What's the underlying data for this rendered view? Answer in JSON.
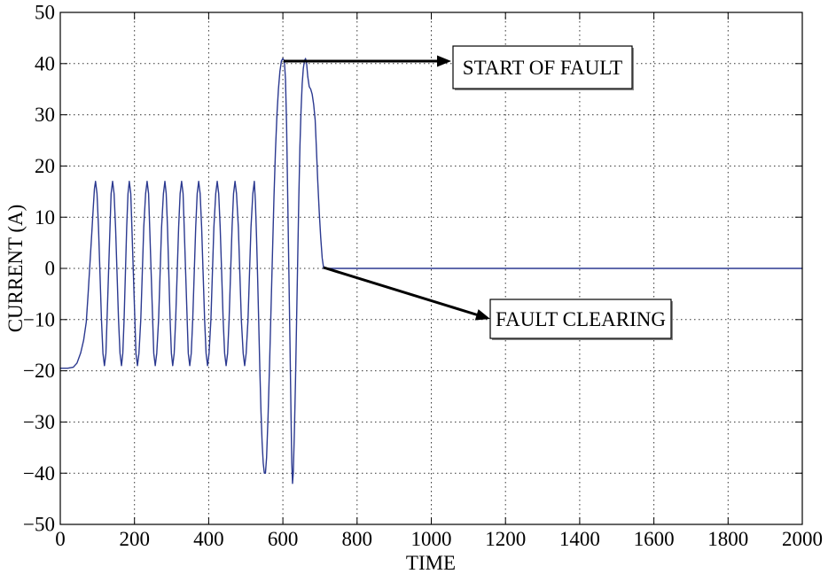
{
  "chart_data": {
    "type": "line",
    "xlabel": "TIME",
    "ylabel": "CURRENT (A)",
    "xlim": [
      0,
      2000
    ],
    "ylim": [
      -50,
      50
    ],
    "xticks": [
      "0",
      "200",
      "400",
      "600",
      "800",
      "1000",
      "1200",
      "1400",
      "1600",
      "1800",
      "2000"
    ],
    "yticks": [
      "50",
      "40",
      "30",
      "20",
      "10",
      "0",
      "−10",
      "−20",
      "−30",
      "−40",
      "−50"
    ],
    "grid": true,
    "series": [
      {
        "color": "#2b3990",
        "x": [
          0,
          20,
          35,
          45,
          55,
          63,
          70,
          75,
          80,
          85,
          89,
          92,
          95,
          99,
          103,
          107,
          111,
          115,
          119,
          123,
          126,
          130,
          134,
          137,
          141,
          145,
          149,
          153,
          157,
          161,
          165,
          168.5,
          172,
          175.5,
          179,
          182.5,
          186,
          190,
          193,
          197,
          201,
          204,
          208,
          212,
          217,
          221,
          225,
          230,
          234,
          238,
          241,
          245,
          249,
          252,
          256,
          260,
          265,
          269,
          273,
          278,
          282,
          285.5,
          289,
          292.5,
          296,
          299.5,
          303,
          307,
          311,
          315,
          319,
          323,
          327,
          331,
          334,
          338,
          342,
          345,
          349,
          353,
          357,
          361,
          365,
          369,
          373,
          377,
          381,
          385,
          389,
          393,
          397,
          401,
          406,
          410,
          414,
          419,
          423,
          427,
          431,
          435,
          439,
          443,
          447,
          451,
          455,
          459,
          463,
          467,
          471,
          475,
          480,
          484,
          488,
          493,
          497,
          501,
          506,
          510,
          514,
          519,
          523,
          526,
          529,
          532,
          535,
          538,
          541,
          544,
          547,
          550,
          553,
          556,
          560,
          564,
          568,
          572,
          576,
          580,
          584,
          588,
          592,
          596,
          600,
          604,
          607,
          610,
          613,
          616,
          619,
          622,
          624,
          626,
          628,
          631,
          634,
          637,
          640,
          643,
          646,
          649,
          652,
          655,
          658,
          661,
          664,
          667,
          671,
          675,
          679,
          683,
          687,
          690,
          694,
          698,
          702,
          706,
          710,
          2000
        ],
        "y": [
          -19.5,
          -19.5,
          -19.3,
          -18.5,
          -16.5,
          -14,
          -10.5,
          -5,
          1,
          7,
          12,
          15.5,
          17,
          14.6,
          8,
          -1,
          -10,
          -16.6,
          -19,
          -16.6,
          -10,
          -1,
          8,
          14.6,
          17,
          14.6,
          8,
          -1,
          -10,
          -16.6,
          -19,
          -16.6,
          -10,
          -1,
          8,
          14.6,
          17,
          14.6,
          8,
          -1,
          -10,
          -16.6,
          -19,
          -16.6,
          -10,
          -1,
          8,
          14.6,
          17,
          14.6,
          8,
          -1,
          -10,
          -16.6,
          -19,
          -16.6,
          -10,
          -1,
          8,
          14.6,
          17,
          14.6,
          8,
          -1,
          -10,
          -16.6,
          -19,
          -16.6,
          -10,
          -1,
          8,
          14.6,
          17,
          14.6,
          8,
          -1,
          -10,
          -16.6,
          -19,
          -16.6,
          -10,
          -1,
          8,
          14.6,
          17,
          14.6,
          8,
          -1,
          -10,
          -16.6,
          -19,
          -16.6,
          -10,
          -1,
          8,
          14.6,
          17,
          14.6,
          8,
          -1,
          -10,
          -16.6,
          -19,
          -16.6,
          -10,
          -1,
          8,
          14.6,
          17,
          14.6,
          8,
          -1,
          -10,
          -16.6,
          -19,
          -16.6,
          -10,
          -1,
          8,
          14.6,
          17,
          13,
          6,
          -2,
          -11,
          -20,
          -28,
          -34,
          -38,
          -40,
          -40,
          -37,
          -29,
          -19,
          -8,
          3,
          14,
          23,
          30,
          35,
          38.5,
          40.5,
          41,
          40.5,
          37,
          28,
          14,
          0,
          -14,
          -29,
          -38,
          -42,
          -40,
          -32,
          -22,
          -10,
          2,
          14,
          24,
          31,
          36,
          39,
          40.5,
          41,
          40,
          37.5,
          35.5,
          35,
          34,
          32,
          29,
          24,
          17,
          11,
          6,
          2,
          0,
          0
        ]
      }
    ],
    "annotations": [
      {
        "text": "START OF FAULT"
      },
      {
        "text": "FAULT CLEARING"
      }
    ]
  }
}
